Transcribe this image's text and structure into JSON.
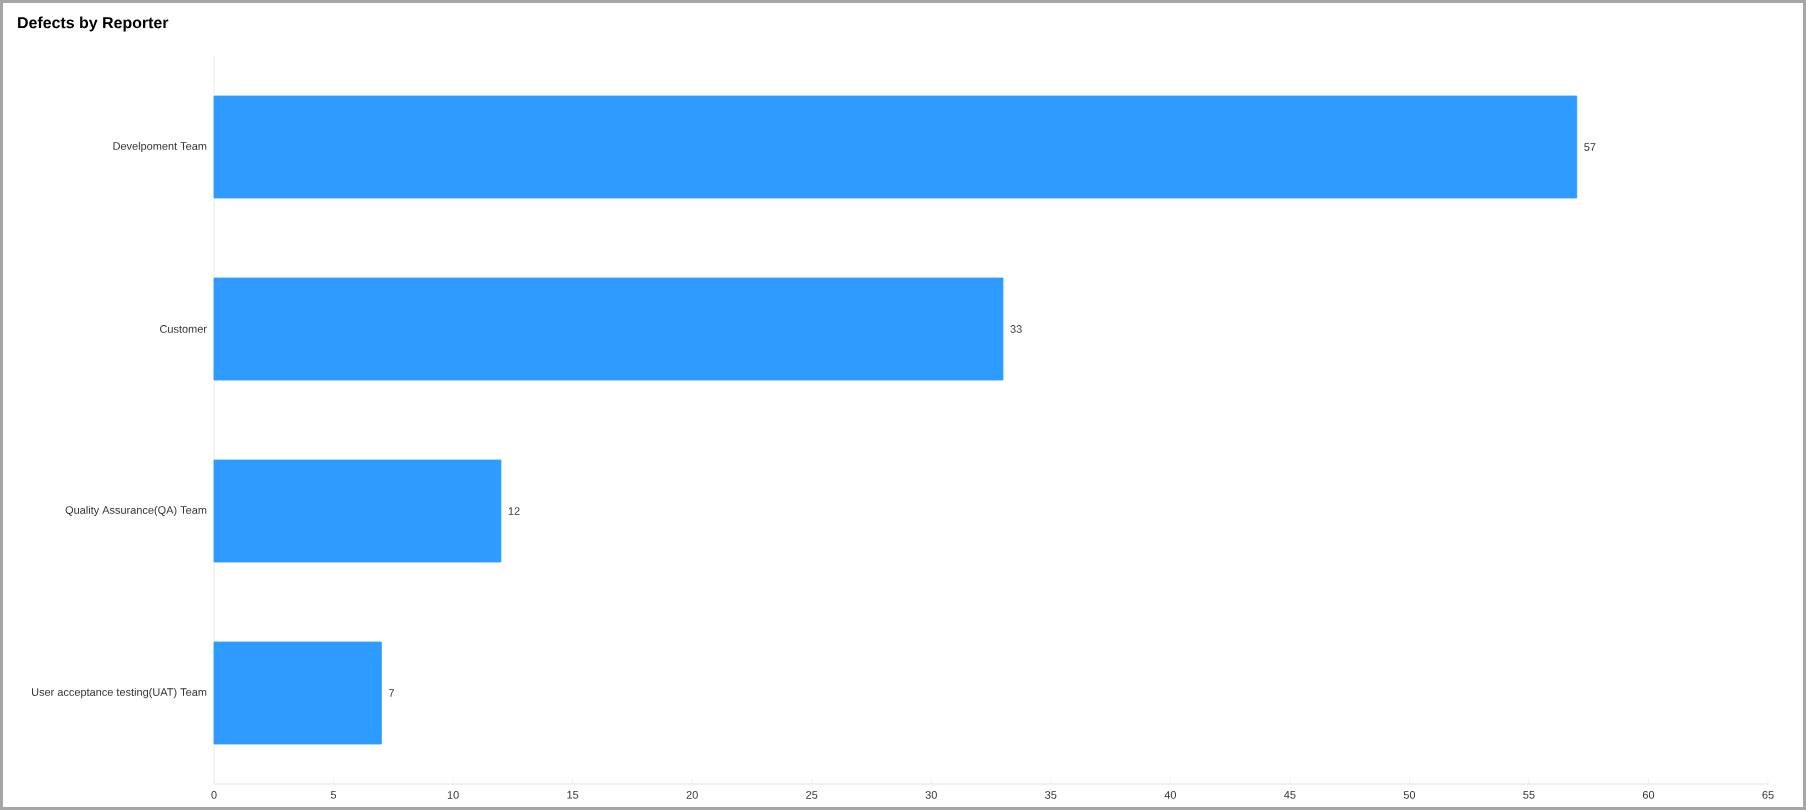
{
  "chart_data": {
    "type": "bar",
    "orientation": "horizontal",
    "title": "Defects by Reporter",
    "categories": [
      "Develpoment Team",
      "Customer",
      "Quality Assurance(QA) Team",
      "User acceptance testing(UAT) Team"
    ],
    "values": [
      57,
      33,
      12,
      7
    ],
    "color": "#2d9bff",
    "xlim": [
      0,
      65
    ],
    "xticks": [
      0,
      5,
      10,
      15,
      20,
      25,
      30,
      35,
      40,
      45,
      50,
      55,
      60,
      65
    ],
    "data_labels": true
  }
}
